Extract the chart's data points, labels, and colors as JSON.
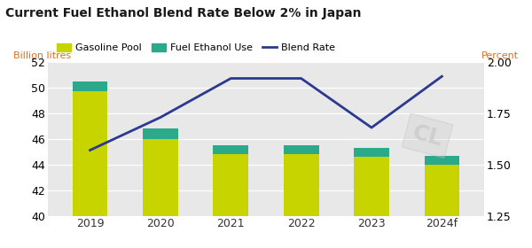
{
  "title": "Current Fuel Ethanol Blend Rate Below 2% in Japan",
  "categories": [
    "2019",
    "2020",
    "2021",
    "2022",
    "2023",
    "2024f"
  ],
  "gasoline_pool": [
    49.7,
    46.0,
    44.8,
    44.8,
    44.6,
    44.0
  ],
  "fuel_ethanol": [
    0.8,
    0.8,
    0.7,
    0.7,
    0.7,
    0.7
  ],
  "blend_rate": [
    1.57,
    1.73,
    1.92,
    1.92,
    1.68,
    1.93
  ],
  "bar_color_gasoline": "#c8d400",
  "bar_color_ethanol": "#2aaa8a",
  "line_color": "#2b3990",
  "left_ylabel": "Billion litres",
  "right_ylabel": "Percent",
  "ylim_left": [
    40,
    52
  ],
  "ylim_right": [
    1.25,
    2.0
  ],
  "yticks_left": [
    40,
    42,
    44,
    46,
    48,
    50,
    52
  ],
  "yticks_right": [
    1.25,
    1.5,
    1.75,
    2.0
  ],
  "background_color": "#e8e8e8",
  "title_color": "#1a1a1a",
  "axis_label_color": "#e07020",
  "legend_items": [
    "Gasoline Pool",
    "Fuel Ethanol Use",
    "Blend Rate"
  ],
  "bar_width": 0.5
}
